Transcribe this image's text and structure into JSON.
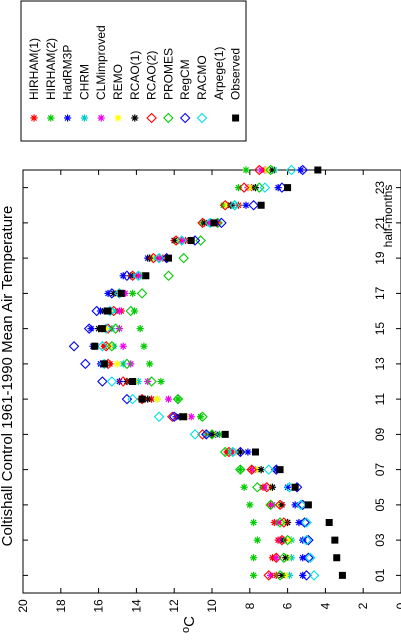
{
  "chart_data": {
    "type": "scatter",
    "title": "Coltishall Control 1961-1990 Mean Air Temperature",
    "xlabel": "half-months",
    "ylabel": "oC",
    "xlim": [
      0,
      24
    ],
    "ylim": [
      0,
      20
    ],
    "x_ticks": [
      "01",
      "03",
      "05",
      "07",
      "09",
      "11",
      "13",
      "15",
      "17",
      "19",
      "21",
      "23"
    ],
    "y_ticks": [
      "0",
      "2",
      "4",
      "6",
      "8",
      "10",
      "12",
      "14",
      "16",
      "18",
      "20"
    ],
    "orientation": "rotated-90-ccw",
    "legend_position": "top-right",
    "series": [
      {
        "name": "HIRHAM(1)",
        "color": "#ff0000",
        "marker": "star",
        "values": [
          6.6,
          6.8,
          6.5,
          6.7,
          6.9,
          7.3,
          7.9,
          9.2,
          10.3,
          11.7,
          13.2,
          14.5,
          15.4,
          15.7,
          15.8,
          14.8,
          14.7,
          13.8,
          12.6,
          11.4,
          9.7,
          8.6,
          7.9,
          7.2
        ]
      },
      {
        "name": "HIRHAM(2)",
        "color": "#00cc00",
        "marker": "star",
        "values": [
          7.8,
          7.8,
          7.6,
          7.8,
          8.0,
          8.3,
          8.5,
          8.9,
          9.6,
          10.6,
          11.8,
          12.7,
          13.3,
          13.6,
          13.8,
          14.1,
          14.2,
          13.7,
          12.8,
          11.8,
          10.5,
          9.4,
          8.6,
          8.2
        ]
      },
      {
        "name": "HadRM3P",
        "color": "#0000ff",
        "marker": "star",
        "values": [
          5.2,
          5.2,
          5.2,
          5.4,
          5.6,
          6.0,
          6.6,
          8.1,
          9.8,
          11.9,
          13.7,
          14.9,
          15.9,
          16.3,
          16.4,
          15.9,
          15.5,
          14.7,
          13.4,
          11.9,
          10.0,
          8.2,
          6.5,
          5.3
        ]
      },
      {
        "name": "CHRM",
        "color": "#00cccc",
        "marker": "star",
        "values": [
          5.9,
          5.8,
          5.8,
          6.1,
          6.4,
          6.9,
          7.7,
          8.9,
          10.3,
          11.7,
          12.9,
          13.9,
          14.7,
          15.2,
          15.3,
          15.1,
          14.9,
          14.1,
          13.0,
          11.6,
          10.1,
          8.9,
          7.7,
          6.7
        ]
      },
      {
        "name": "CLMimproved",
        "color": "#ee00ee",
        "marker": "star",
        "values": [
          6.9,
          6.6,
          6.4,
          6.5,
          6.8,
          7.2,
          7.8,
          8.8,
          9.9,
          11.1,
          12.3,
          13.4,
          14.3,
          14.7,
          14.9,
          14.9,
          14.6,
          13.9,
          12.8,
          11.6,
          10.2,
          9.0,
          8.1,
          7.4
        ]
      },
      {
        "name": "REMO",
        "color": "#ffff00",
        "marker": "star",
        "values": [
          6.1,
          6.0,
          5.9,
          6.1,
          6.4,
          6.9,
          7.6,
          8.7,
          9.9,
          11.4,
          12.9,
          14.1,
          15.0,
          15.4,
          15.6,
          15.4,
          15.1,
          14.3,
          13.2,
          11.9,
          10.4,
          9.2,
          8.0,
          7.1
        ]
      },
      {
        "name": "RCAO(1)",
        "color": "#000000",
        "marker": "star",
        "values": [
          6.3,
          6.1,
          6.2,
          6.0,
          6.3,
          6.8,
          7.4,
          8.5,
          10.0,
          11.7,
          13.4,
          14.5,
          15.7,
          16.2,
          16.0,
          15.7,
          15.2,
          14.3,
          13.3,
          12.0,
          10.4,
          9.0,
          7.7,
          6.8
        ]
      },
      {
        "name": "RCAO(2)",
        "color": "#ff0000",
        "marker": "diamond",
        "values": [
          7.0,
          6.6,
          6.3,
          6.2,
          6.4,
          7.1,
          7.9,
          9.1,
          10.5,
          12.1,
          13.7,
          14.7,
          15.5,
          15.6,
          15.5,
          15.2,
          14.9,
          14.2,
          13.1,
          11.9,
          10.5,
          9.3,
          8.3,
          7.5
        ]
      },
      {
        "name": "PROMES",
        "color": "#00cc00",
        "marker": "diamond",
        "values": [
          6.4,
          6.2,
          6.0,
          6.4,
          6.9,
          7.6,
          8.5,
          9.3,
          10.0,
          10.5,
          11.8,
          13.2,
          14.5,
          15.3,
          15.1,
          14.3,
          13.7,
          12.3,
          11.5,
          10.6,
          9.7,
          8.8,
          7.5,
          6.9
        ]
      },
      {
        "name": "RegCM",
        "color": "#0000ff",
        "marker": "diamond",
        "values": [
          5.0,
          4.9,
          4.9,
          5.1,
          5.2,
          5.5,
          6.6,
          8.5,
          10.3,
          12.0,
          14.5,
          15.8,
          16.7,
          17.3,
          16.5,
          16.1,
          15.3,
          14.5,
          12.4,
          10.9,
          9.5,
          7.8,
          6.3,
          5.2
        ]
      },
      {
        "name": "RACMO",
        "color": "#00e0e0",
        "marker": "diamond",
        "values": [
          4.6,
          4.8,
          5.0,
          5.0,
          5.3,
          5.9,
          7.0,
          8.9,
          10.9,
          12.8,
          14.2,
          15.3,
          15.7,
          15.8,
          15.6,
          15.4,
          14.9,
          13.9,
          12.8,
          11.6,
          10.1,
          8.8,
          7.2,
          5.8
        ]
      },
      {
        "name": "Arpege(1)",
        "color": "#000000",
        "marker": "none",
        "values": []
      },
      {
        "name": "Observed",
        "color": "#000000",
        "marker": "square",
        "values": [
          3.1,
          3.4,
          3.5,
          3.8,
          4.9,
          5.6,
          6.4,
          7.7,
          9.3,
          11.5,
          13.7,
          14.2,
          15.7,
          16.2,
          15.8,
          15.5,
          14.8,
          13.5,
          12.3,
          11.1,
          9.9,
          7.4,
          6.0,
          4.4
        ]
      }
    ]
  }
}
